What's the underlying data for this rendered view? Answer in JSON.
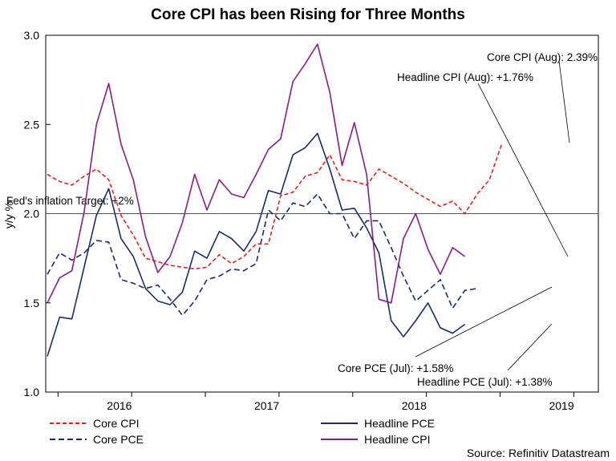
{
  "chart_data": {
    "type": "line",
    "title": "Core CPI has been Rising for Three Months",
    "ylabel": "y/y %",
    "xlabel": "",
    "source": "Source: Refinitiv Datastream",
    "ylim": [
      1.0,
      3.0
    ],
    "yticks": [
      "3.0",
      "2.5",
      "2.0",
      "1.5",
      "1.0"
    ],
    "xticks": [
      "2016",
      "2017",
      "2018",
      "2019"
    ],
    "x": [
      "2015-12",
      "2016-01",
      "2016-02",
      "2016-03",
      "2016-04",
      "2016-05",
      "2016-06",
      "2016-07",
      "2016-08",
      "2016-09",
      "2016-10",
      "2016-11",
      "2016-12",
      "2017-01",
      "2017-02",
      "2017-03",
      "2017-04",
      "2017-05",
      "2017-06",
      "2017-07",
      "2017-08",
      "2017-09",
      "2017-10",
      "2017-11",
      "2017-12",
      "2018-01",
      "2018-02",
      "2018-03",
      "2018-04",
      "2018-05",
      "2018-06",
      "2018-07",
      "2018-08",
      "2018-09",
      "2018-10",
      "2018-11",
      "2018-12",
      "2019-01",
      "2019-02",
      "2019-03",
      "2019-04",
      "2019-05",
      "2019-06",
      "2019-07",
      "2019-08"
    ],
    "target_line": {
      "value": 2.0,
      "label": "Fed's inflation Target: +2%"
    },
    "series": [
      {
        "name": "Core CPI",
        "color": "#ee1c1c",
        "dash": "short",
        "values": [
          2.22,
          2.18,
          2.16,
          2.21,
          2.25,
          2.19,
          1.99,
          1.88,
          1.75,
          1.73,
          1.71,
          1.7,
          1.69,
          1.7,
          1.77,
          1.72,
          1.76,
          1.83,
          1.83,
          2.1,
          2.12,
          2.21,
          2.23,
          2.33,
          2.19,
          2.18,
          2.16,
          2.25,
          2.21,
          2.17,
          2.12,
          2.08,
          2.04,
          2.07,
          2.0,
          2.11,
          2.19,
          2.39,
          null,
          null,
          null,
          null,
          null,
          null,
          null
        ]
      },
      {
        "name": "Core PCE",
        "color": "#1a2a6e",
        "dash": "long",
        "values": [
          1.66,
          1.78,
          1.74,
          1.78,
          1.85,
          1.84,
          1.63,
          1.61,
          1.58,
          1.6,
          1.52,
          1.43,
          1.51,
          1.63,
          1.65,
          1.69,
          1.68,
          1.72,
          2.02,
          1.96,
          2.06,
          2.04,
          2.11,
          2.0,
          2.0,
          1.86,
          1.96,
          1.96,
          1.81,
          1.65,
          1.51,
          1.57,
          1.63,
          1.47,
          1.57,
          1.58,
          null,
          null,
          null,
          null,
          null,
          null,
          null,
          null,
          null
        ]
      },
      {
        "name": "Headline PCE",
        "color": "#1a2a6e",
        "dash": "solid",
        "values": [
          1.2,
          1.42,
          1.41,
          1.7,
          1.99,
          2.14,
          1.86,
          1.76,
          1.58,
          1.51,
          1.49,
          1.56,
          1.79,
          1.75,
          1.9,
          1.86,
          1.79,
          1.9,
          2.13,
          2.11,
          2.33,
          2.37,
          2.45,
          2.25,
          2.02,
          2.03,
          1.92,
          1.78,
          1.4,
          1.31,
          1.4,
          1.5,
          1.36,
          1.33,
          1.38,
          null,
          null,
          null,
          null,
          null,
          null,
          null,
          null,
          null,
          null
        ]
      },
      {
        "name": "Headline CPI",
        "color": "#8b1a8b",
        "dash": "solid",
        "values": [
          1.5,
          1.64,
          1.68,
          2.01,
          2.5,
          2.73,
          2.39,
          2.19,
          1.87,
          1.67,
          1.76,
          1.95,
          2.22,
          2.02,
          2.19,
          2.11,
          2.09,
          2.22,
          2.36,
          2.42,
          2.74,
          2.84,
          2.95,
          2.68,
          2.27,
          2.51,
          2.22,
          1.52,
          1.5,
          1.86,
          2.0,
          1.8,
          1.66,
          1.81,
          1.76,
          null,
          null,
          null,
          null,
          null,
          null,
          null,
          null,
          null,
          null
        ]
      }
    ],
    "annotations": [
      {
        "text": "Core CPI (Aug): 2.39%"
      },
      {
        "text": "Headline CPI (Aug): +1.76%"
      },
      {
        "text": "Core PCE (Jul): +1.58%"
      },
      {
        "text": "Headline PCE (Jul): +1.38%"
      }
    ],
    "legend": {
      "placement": "bottom"
    }
  }
}
